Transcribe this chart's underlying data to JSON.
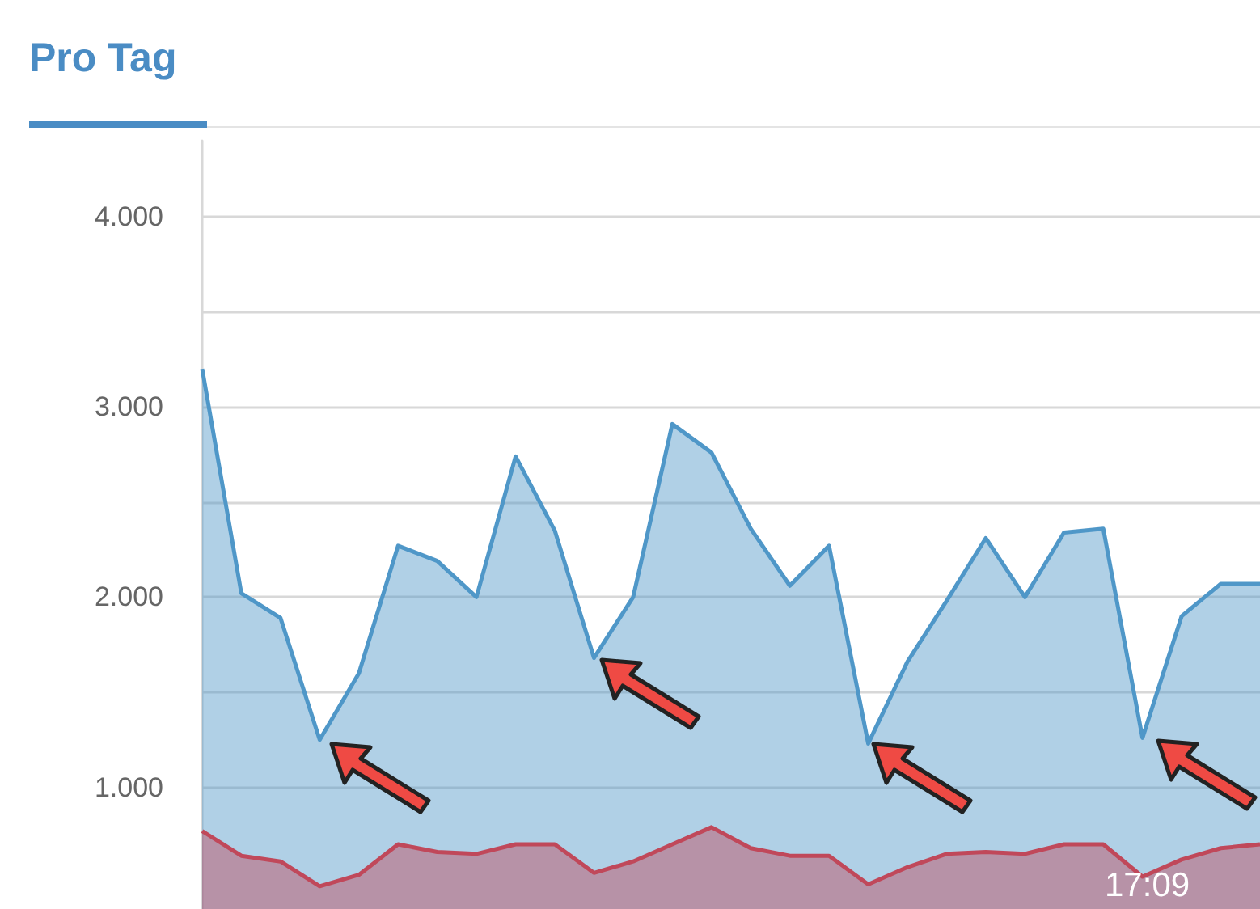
{
  "chart_data": {
    "type": "area",
    "title": "Pro Tag",
    "categories": [
      null,
      null,
      null,
      null,
      null,
      null,
      null,
      null,
      null,
      null,
      null,
      null,
      null,
      null,
      null,
      null,
      null,
      null,
      null,
      null,
      null,
      null,
      null,
      null,
      null,
      null,
      null,
      null
    ],
    "series": [
      {
        "color": "#4f97c8",
        "values": [
          3200,
          2020,
          1890,
          1250,
          1600,
          2270,
          2190,
          2000,
          2740,
          2350,
          1680,
          2000,
          2910,
          2760,
          2360,
          2060,
          2270,
          1230,
          1660,
          1980,
          2310,
          2000,
          2340,
          2360,
          1260,
          1900,
          2070,
          2070
        ]
      },
      {
        "color": "#c0485a",
        "values": [
          770,
          640,
          610,
          480,
          540,
          700,
          660,
          650,
          700,
          700,
          550,
          610,
          700,
          790,
          680,
          640,
          640,
          490,
          580,
          650,
          660,
          650,
          700,
          700,
          530,
          620,
          680,
          700
        ]
      }
    ],
    "ylim": [
      360,
      4400
    ],
    "yticks": [
      {
        "value": 1000,
        "label": "1.000"
      },
      {
        "value": 1500,
        "label": null
      },
      {
        "value": 2000,
        "label": "2.000"
      },
      {
        "value": 2500,
        "label": null
      },
      {
        "value": 3000,
        "label": "3.000"
      },
      {
        "value": 3500,
        "label": null
      },
      {
        "value": 4000,
        "label": "4.000"
      }
    ],
    "grid": "y",
    "tick_labels": "y",
    "marker": "none",
    "line_style": "solid",
    "annotations": [
      "17:09"
    ]
  }
}
